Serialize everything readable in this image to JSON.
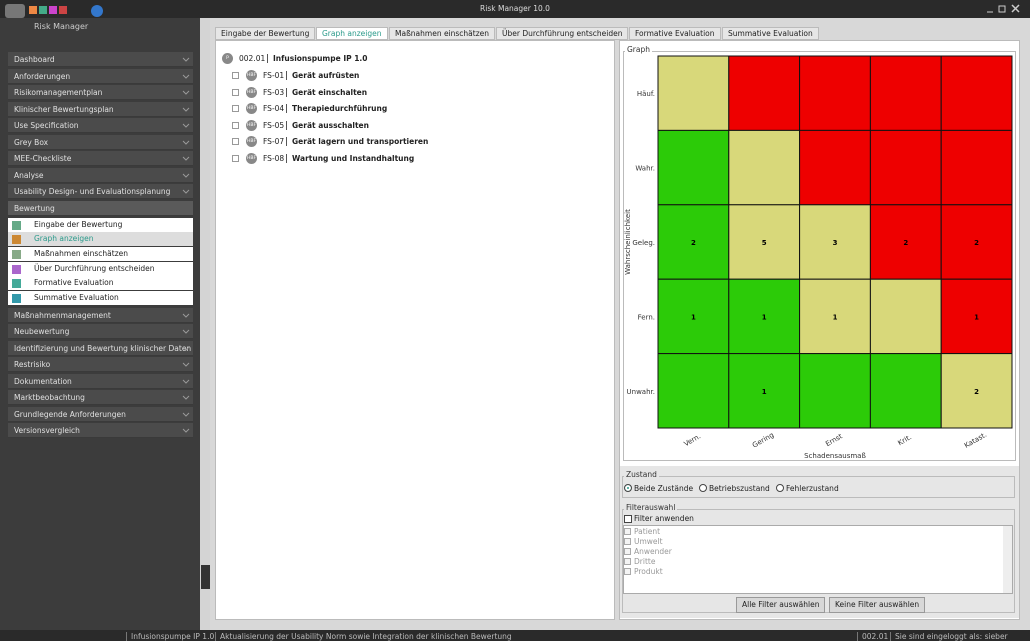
{
  "window": {
    "title": "Risk Manager  10.0",
    "app_name": "Risk Manager"
  },
  "sidebar": {
    "sections_before": [
      "Dashboard",
      "Anforderungen",
      "Risikomanagementplan",
      "Klinischer Bewertungsplan",
      "Use Specification",
      "Grey Box",
      "MEE-Checkliste",
      "Analyse",
      "Usability Design- und Evaluationsplanung"
    ],
    "expanded": {
      "label": "Bewertung",
      "items": [
        "Eingabe der Bewertung",
        "Graph anzeigen",
        "Maßnahmen einschätzen",
        "Über Durchführung entscheiden",
        "Formative Evaluation",
        "Summative Evaluation"
      ],
      "selected": 1
    },
    "sections_after": [
      "Maßnahmenmanagement",
      "Neubewertung",
      "Identifizierung und Bewertung klinischer Daten",
      "Restrisiko",
      "Dokumentation",
      "Marktbeobachtung",
      "Grundlegende Anforderungen",
      "Versionsvergleich"
    ]
  },
  "tabs": {
    "items": [
      "Eingabe der Bewertung",
      "Graph anzeigen",
      "Maßnahmen einschätzen",
      "Über Durchführung entscheiden",
      "Formative Evaluation",
      "Summative Evaluation"
    ],
    "active": 1
  },
  "tree": {
    "root": {
      "badge": "P",
      "id": "002.01",
      "label": "Infusionspumpe IP 1.0"
    },
    "children": [
      {
        "badge": "HBF",
        "id": "FS-01",
        "label": "Gerät aufrüsten"
      },
      {
        "badge": "HBF",
        "id": "FS-03",
        "label": "Gerät einschalten"
      },
      {
        "badge": "HBF",
        "id": "FS-04",
        "label": "Therapiedurchführung"
      },
      {
        "badge": "HBF",
        "id": "FS-05",
        "label": "Gerät ausschalten"
      },
      {
        "badge": "HBF",
        "id": "FS-07",
        "label": "Gerät lagern und transportieren"
      },
      {
        "badge": "HBF",
        "id": "FS-08",
        "label": "Wartung und Instandhaltung"
      }
    ]
  },
  "graph": {
    "legend": "Graph",
    "y_axis_title": "Wahrscheinlichkeit",
    "x_axis_title": "Schadensausmaß",
    "row_labels": [
      "Häuf.",
      "Wahr.",
      "Geleg.",
      "Fern.",
      "Unwahr."
    ],
    "column_labels": [
      "Vern.",
      "Gering",
      "Ernst",
      "Krit.",
      "Katast."
    ],
    "cells": [
      [
        {
          "color": "#d8d87a",
          "count": null
        },
        {
          "color": "#ee0000",
          "count": null
        },
        {
          "color": "#ee0000",
          "count": null
        },
        {
          "color": "#ee0000",
          "count": null
        },
        {
          "color": "#ee0000",
          "count": null
        }
      ],
      [
        {
          "color": "#2ccb08",
          "count": null
        },
        {
          "color": "#d8d87a",
          "count": null
        },
        {
          "color": "#ee0000",
          "count": null
        },
        {
          "color": "#ee0000",
          "count": null
        },
        {
          "color": "#ee0000",
          "count": null
        }
      ],
      [
        {
          "color": "#2ccb08",
          "count": 2
        },
        {
          "color": "#d8d87a",
          "count": 5
        },
        {
          "color": "#d8d87a",
          "count": 3
        },
        {
          "color": "#ee0000",
          "count": 2
        },
        {
          "color": "#ee0000",
          "count": 2
        }
      ],
      [
        {
          "color": "#2ccb08",
          "count": 1
        },
        {
          "color": "#2ccb08",
          "count": 1
        },
        {
          "color": "#d8d87a",
          "count": 1
        },
        {
          "color": "#d8d87a",
          "count": null
        },
        {
          "color": "#ee0000",
          "count": 1
        }
      ],
      [
        {
          "color": "#2ccb08",
          "count": null
        },
        {
          "color": "#2ccb08",
          "count": 1
        },
        {
          "color": "#2ccb08",
          "count": null
        },
        {
          "color": "#2ccb08",
          "count": null
        },
        {
          "color": "#d8d87a",
          "count": 2
        }
      ]
    ]
  },
  "zustand": {
    "legend": "Zustand",
    "options": [
      "Beide Zustände",
      "Betriebszustand",
      "Fehlerzustand"
    ],
    "selected": 0
  },
  "filter": {
    "legend": "Filterauswahl",
    "apply_label": "Filter anwenden",
    "items": [
      "Patient",
      "Umwelt",
      "Anwender",
      "Dritte",
      "Produkt"
    ],
    "buttons": [
      "Alle Filter auswählen",
      "Keine Filter auswählen"
    ]
  },
  "status_bar": {
    "project": "Infusionspumpe IP 1.0",
    "message": "Aktualisierung der Usability Norm sowie Integration der klinischen Bewertung",
    "version": "002.01",
    "login": "Sie sind eingeloggt als: sieber"
  }
}
